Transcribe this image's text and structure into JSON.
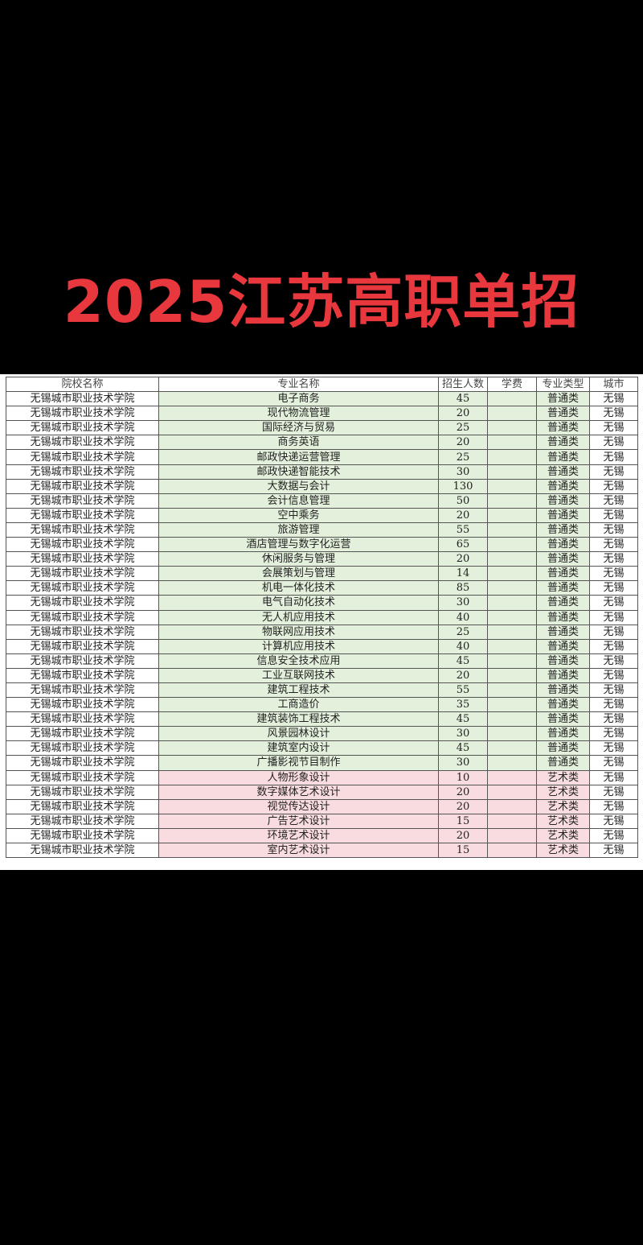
{
  "title": "2025江苏高职单招",
  "colors": {
    "title": "#e8383d",
    "regular_row": "#e3f0dc",
    "art_row": "#f9dcdf"
  },
  "table": {
    "headers": [
      "院校名称",
      "专业名称",
      "招生人数",
      "学费",
      "专业类型",
      "城市"
    ],
    "rows": [
      [
        "无锡城市职业技术学院",
        "电子商务",
        "45",
        "",
        "普通类",
        "无锡"
      ],
      [
        "无锡城市职业技术学院",
        "现代物流管理",
        "20",
        "",
        "普通类",
        "无锡"
      ],
      [
        "无锡城市职业技术学院",
        "国际经济与贸易",
        "25",
        "",
        "普通类",
        "无锡"
      ],
      [
        "无锡城市职业技术学院",
        "商务英语",
        "20",
        "",
        "普通类",
        "无锡"
      ],
      [
        "无锡城市职业技术学院",
        "邮政快递运营管理",
        "25",
        "",
        "普通类",
        "无锡"
      ],
      [
        "无锡城市职业技术学院",
        "邮政快递智能技术",
        "30",
        "",
        "普通类",
        "无锡"
      ],
      [
        "无锡城市职业技术学院",
        "大数据与会计",
        "130",
        "",
        "普通类",
        "无锡"
      ],
      [
        "无锡城市职业技术学院",
        "会计信息管理",
        "50",
        "",
        "普通类",
        "无锡"
      ],
      [
        "无锡城市职业技术学院",
        "空中乘务",
        "20",
        "",
        "普通类",
        "无锡"
      ],
      [
        "无锡城市职业技术学院",
        "旅游管理",
        "55",
        "",
        "普通类",
        "无锡"
      ],
      [
        "无锡城市职业技术学院",
        "酒店管理与数字化运营",
        "65",
        "",
        "普通类",
        "无锡"
      ],
      [
        "无锡城市职业技术学院",
        "休闲服务与管理",
        "20",
        "",
        "普通类",
        "无锡"
      ],
      [
        "无锡城市职业技术学院",
        "会展策划与管理",
        "14",
        "",
        "普通类",
        "无锡"
      ],
      [
        "无锡城市职业技术学院",
        "机电一体化技术",
        "85",
        "",
        "普通类",
        "无锡"
      ],
      [
        "无锡城市职业技术学院",
        "电气自动化技术",
        "30",
        "",
        "普通类",
        "无锡"
      ],
      [
        "无锡城市职业技术学院",
        "无人机应用技术",
        "40",
        "",
        "普通类",
        "无锡"
      ],
      [
        "无锡城市职业技术学院",
        "物联网应用技术",
        "25",
        "",
        "普通类",
        "无锡"
      ],
      [
        "无锡城市职业技术学院",
        "计算机应用技术",
        "40",
        "",
        "普通类",
        "无锡"
      ],
      [
        "无锡城市职业技术学院",
        "信息安全技术应用",
        "45",
        "",
        "普通类",
        "无锡"
      ],
      [
        "无锡城市职业技术学院",
        "工业互联网技术",
        "20",
        "",
        "普通类",
        "无锡"
      ],
      [
        "无锡城市职业技术学院",
        "建筑工程技术",
        "55",
        "",
        "普通类",
        "无锡"
      ],
      [
        "无锡城市职业技术学院",
        "工商造价",
        "35",
        "",
        "普通类",
        "无锡"
      ],
      [
        "无锡城市职业技术学院",
        "建筑装饰工程技术",
        "45",
        "",
        "普通类",
        "无锡"
      ],
      [
        "无锡城市职业技术学院",
        "风景园林设计",
        "30",
        "",
        "普通类",
        "无锡"
      ],
      [
        "无锡城市职业技术学院",
        "建筑室内设计",
        "45",
        "",
        "普通类",
        "无锡"
      ],
      [
        "无锡城市职业技术学院",
        "广播影视节目制作",
        "30",
        "",
        "普通类",
        "无锡"
      ],
      [
        "无锡城市职业技术学院",
        "人物形象设计",
        "10",
        "",
        "艺术类",
        "无锡"
      ],
      [
        "无锡城市职业技术学院",
        "数字媒体艺术设计",
        "20",
        "",
        "艺术类",
        "无锡"
      ],
      [
        "无锡城市职业技术学院",
        "视觉传达设计",
        "20",
        "",
        "艺术类",
        "无锡"
      ],
      [
        "无锡城市职业技术学院",
        "广告艺术设计",
        "15",
        "",
        "艺术类",
        "无锡"
      ],
      [
        "无锡城市职业技术学院",
        "环境艺术设计",
        "20",
        "",
        "艺术类",
        "无锡"
      ],
      [
        "无锡城市职业技术学院",
        "室内艺术设计",
        "15",
        "",
        "艺术类",
        "无锡"
      ]
    ]
  }
}
